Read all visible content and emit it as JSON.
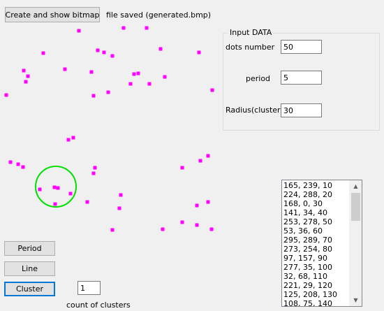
{
  "toolbar": {
    "create_button_label": "Create and show bitmap",
    "status_text": "file saved (generated.bmp)"
  },
  "input_data": {
    "title": "Input DATA",
    "dots_label": "dots number",
    "dots_value": "50",
    "period_label": "period",
    "period_value": "5",
    "radius_label": "Radius(cluster)",
    "radius_value": "30"
  },
  "actions": {
    "period_label": "Period",
    "line_label": "Line",
    "cluster_label": "Cluster",
    "cluster_count_value": "1",
    "cluster_count_label": "count of clusters"
  },
  "list": {
    "items": [
      "165, 239, 10",
      "224, 288, 20",
      "168, 0, 30",
      "141, 34, 40",
      "253, 278, 50",
      "53, 36, 60",
      "295, 289, 70",
      "273, 254, 80",
      "97, 157, 90",
      "277, 35, 100",
      "32, 68, 110",
      "221, 29, 120",
      "125, 208, 130",
      "108, 75, 140"
    ]
  },
  "colors": {
    "dot": "#ff00ff",
    "cluster_circle": "#00e000"
  }
}
